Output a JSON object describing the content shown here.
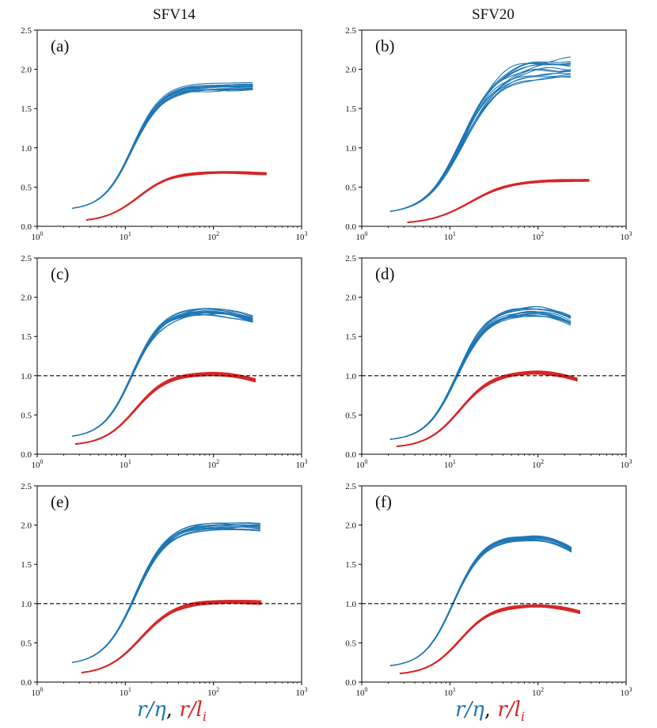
{
  "column_titles": [
    "SFV14",
    "SFV20"
  ],
  "xlabel": {
    "blue_part": "r/η",
    "separator": ", ",
    "red_part_main": "r/l",
    "red_part_sub": "i"
  },
  "colors": {
    "blue": "#1f77b4",
    "red": "#d62728",
    "reference_line": "#000000"
  },
  "chart_data": [
    {
      "type": "line",
      "panel": "(a)",
      "column": "SFV14",
      "xscale": "log",
      "xlim": [
        1,
        1000
      ],
      "ylim": [
        0,
        2.5
      ],
      "xticks": [
        {
          "base": "10",
          "exp": "0"
        },
        {
          "base": "10",
          "exp": "1"
        },
        {
          "base": "10",
          "exp": "2"
        },
        {
          "base": "10",
          "exp": "3"
        }
      ],
      "yticks": [
        "0.0",
        "0.5",
        "1.0",
        "1.5",
        "2.0",
        "2.5"
      ],
      "reference_line": null,
      "series": [
        {
          "name": "blue",
          "color": "#1f77b4",
          "x_start": 2.5,
          "x_end": 280,
          "y_start": 0.23,
          "y_plateau": 1.78,
          "x_mid": 12,
          "steepness": 2.6,
          "droop": 0.0,
          "n_curves": 14,
          "spread": 0.05
        },
        {
          "name": "red",
          "color": "#d62728",
          "x_start": 3.6,
          "x_end": 400,
          "y_start": 0.08,
          "y_plateau": 0.69,
          "x_mid": 14,
          "steepness": 2.3,
          "droop": 0.02,
          "n_curves": 10,
          "spread": 0.012
        }
      ]
    },
    {
      "type": "line",
      "panel": "(b)",
      "column": "SFV20",
      "xscale": "log",
      "xlim": [
        1,
        1000
      ],
      "ylim": [
        0,
        2.5
      ],
      "xticks": [
        {
          "base": "10",
          "exp": "0"
        },
        {
          "base": "10",
          "exp": "1"
        },
        {
          "base": "10",
          "exp": "2"
        },
        {
          "base": "10",
          "exp": "3"
        }
      ],
      "yticks": [
        "0.0",
        "0.5",
        "1.0",
        "1.5",
        "2.0",
        "2.5"
      ],
      "reference_line": null,
      "series": [
        {
          "name": "blue",
          "color": "#1f77b4",
          "x_start": 2.1,
          "x_end": 235,
          "y_start": 0.19,
          "y_plateau": 2.02,
          "x_mid": 14,
          "steepness": 2.1,
          "droop": 0.0,
          "n_curves": 14,
          "spread": 0.12
        },
        {
          "name": "red",
          "color": "#d62728",
          "x_start": 3.3,
          "x_end": 380,
          "y_start": 0.05,
          "y_plateau": 0.59,
          "x_mid": 17,
          "steepness": 1.9,
          "droop": 0.0,
          "n_curves": 10,
          "spread": 0.012
        }
      ]
    },
    {
      "type": "line",
      "panel": "(c)",
      "column": "SFV14",
      "xscale": "log",
      "xlim": [
        1,
        1000
      ],
      "ylim": [
        0,
        2.5
      ],
      "xticks": [
        {
          "base": "10",
          "exp": "0"
        },
        {
          "base": "10",
          "exp": "1"
        },
        {
          "base": "10",
          "exp": "2"
        },
        {
          "base": "10",
          "exp": "3"
        }
      ],
      "yticks": [
        "0.0",
        "0.5",
        "1.0",
        "1.5",
        "2.0",
        "2.5"
      ],
      "reference_line": 1.0,
      "series": [
        {
          "name": "blue",
          "color": "#1f77b4",
          "x_start": 2.5,
          "x_end": 280,
          "y_start": 0.23,
          "y_plateau": 1.82,
          "x_mid": 12,
          "steepness": 2.6,
          "droop": 0.11,
          "n_curves": 14,
          "spread": 0.05
        },
        {
          "name": "red",
          "color": "#d62728",
          "x_start": 2.7,
          "x_end": 300,
          "y_start": 0.13,
          "y_plateau": 1.03,
          "x_mid": 13,
          "steepness": 2.4,
          "droop": 0.09,
          "n_curves": 10,
          "spread": 0.02
        }
      ]
    },
    {
      "type": "line",
      "panel": "(d)",
      "column": "SFV20",
      "xscale": "log",
      "xlim": [
        1,
        1000
      ],
      "ylim": [
        0,
        2.5
      ],
      "xticks": [
        {
          "base": "10",
          "exp": "0"
        },
        {
          "base": "10",
          "exp": "1"
        },
        {
          "base": "10",
          "exp": "2"
        },
        {
          "base": "10",
          "exp": "3"
        }
      ],
      "yticks": [
        "0.0",
        "0.5",
        "1.0",
        "1.5",
        "2.0",
        "2.5"
      ],
      "reference_line": 1.0,
      "series": [
        {
          "name": "blue",
          "color": "#1f77b4",
          "x_start": 2.1,
          "x_end": 235,
          "y_start": 0.19,
          "y_plateau": 1.83,
          "x_mid": 12,
          "steepness": 2.5,
          "droop": 0.13,
          "n_curves": 14,
          "spread": 0.06
        },
        {
          "name": "red",
          "color": "#d62728",
          "x_start": 2.5,
          "x_end": 280,
          "y_start": 0.1,
          "y_plateau": 1.05,
          "x_mid": 13,
          "steepness": 2.3,
          "droop": 0.1,
          "n_curves": 10,
          "spread": 0.02
        }
      ]
    },
    {
      "type": "line",
      "panel": "(e)",
      "column": "SFV14",
      "xscale": "log",
      "xlim": [
        1,
        1000
      ],
      "ylim": [
        0,
        2.5
      ],
      "xticks": [
        {
          "base": "10",
          "exp": "0"
        },
        {
          "base": "10",
          "exp": "1"
        },
        {
          "base": "10",
          "exp": "2"
        },
        {
          "base": "10",
          "exp": "3"
        }
      ],
      "yticks": [
        "0.0",
        "0.5",
        "1.0",
        "1.5",
        "2.0",
        "2.5"
      ],
      "reference_line": 1.0,
      "series": [
        {
          "name": "blue",
          "color": "#1f77b4",
          "x_start": 2.5,
          "x_end": 340,
          "y_start": 0.25,
          "y_plateau": 2.0,
          "x_mid": 13,
          "steepness": 2.4,
          "droop": 0.02,
          "n_curves": 14,
          "spread": 0.05
        },
        {
          "name": "red",
          "color": "#d62728",
          "x_start": 3.2,
          "x_end": 350,
          "y_start": 0.12,
          "y_plateau": 1.03,
          "x_mid": 15,
          "steepness": 2.2,
          "droop": 0.02,
          "n_curves": 10,
          "spread": 0.02
        }
      ]
    },
    {
      "type": "line",
      "panel": "(f)",
      "column": "SFV20",
      "xscale": "log",
      "xlim": [
        1,
        1000
      ],
      "ylim": [
        0,
        2.5
      ],
      "xticks": [
        {
          "base": "10",
          "exp": "0"
        },
        {
          "base": "10",
          "exp": "1"
        },
        {
          "base": "10",
          "exp": "2"
        },
        {
          "base": "10",
          "exp": "3"
        }
      ],
      "yticks": [
        "0.0",
        "0.5",
        "1.0",
        "1.5",
        "2.0",
        "2.5"
      ],
      "reference_line": 1.0,
      "series": [
        {
          "name": "blue",
          "color": "#1f77b4",
          "x_start": 2.1,
          "x_end": 240,
          "y_start": 0.21,
          "y_plateau": 1.85,
          "x_mid": 11,
          "steepness": 2.6,
          "droop": 0.16,
          "n_curves": 14,
          "spread": 0.04
        },
        {
          "name": "red",
          "color": "#d62728",
          "x_start": 2.7,
          "x_end": 300,
          "y_start": 0.11,
          "y_plateau": 0.98,
          "x_mid": 13,
          "steepness": 2.4,
          "droop": 0.09,
          "n_curves": 10,
          "spread": 0.015
        }
      ]
    }
  ]
}
